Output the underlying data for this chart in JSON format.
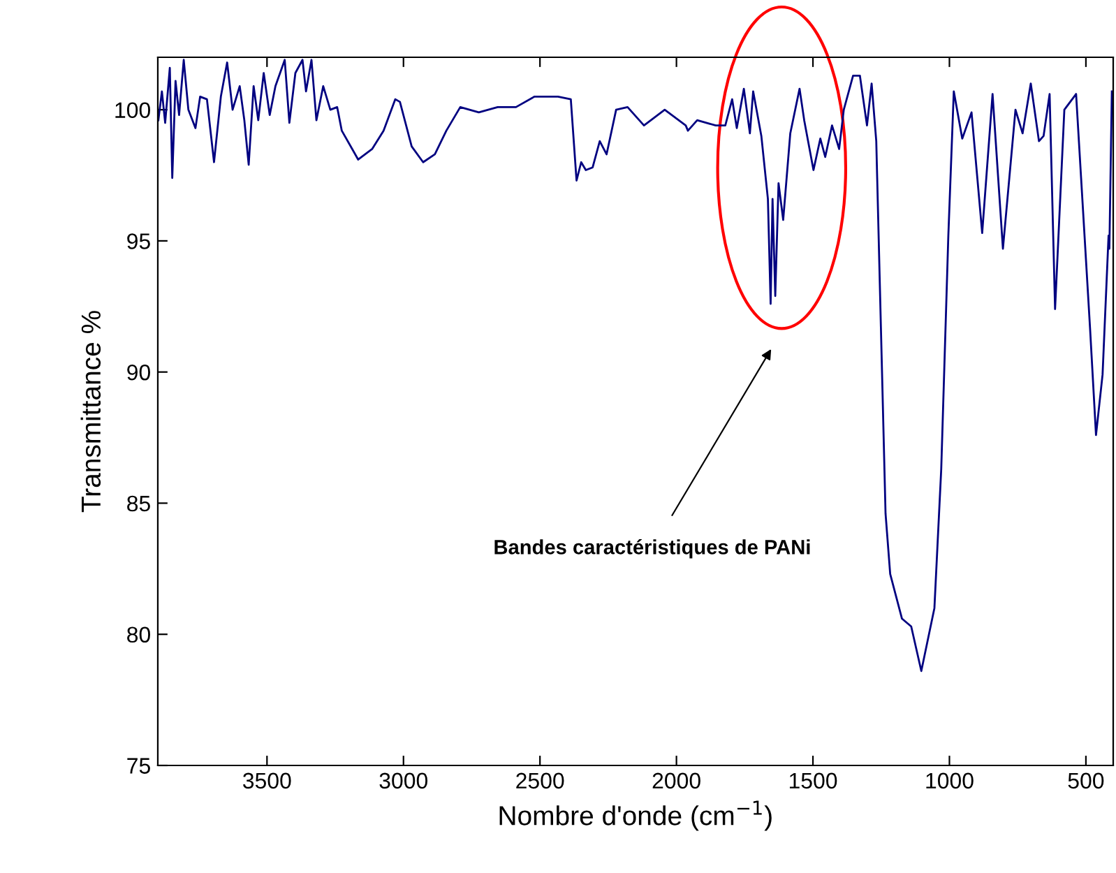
{
  "chart_data": {
    "type": "line",
    "xlabel": "Nombre d'onde (cm$^{−1}$)",
    "ylabel": "Transmittance %",
    "xlim": [
      3900,
      400
    ],
    "ylim": [
      75,
      102
    ],
    "xticks": [
      3500,
      3000,
      2500,
      2000,
      1500,
      1000,
      500
    ],
    "yticks": [
      75,
      80,
      85,
      90,
      95,
      100
    ],
    "grid": false,
    "legend": false,
    "annotations": [
      "Bandes caractéristiques de PANi"
    ],
    "series": [
      {
        "color": "#000080",
        "x": [
          3898,
          3885,
          3873,
          3856,
          3847,
          3835,
          3822,
          3805,
          3788,
          3762,
          3745,
          3720,
          3694,
          3669,
          3646,
          3626,
          3600,
          3583,
          3567,
          3549,
          3532,
          3512,
          3490,
          3469,
          3435,
          3418,
          3396,
          3370,
          3357,
          3337,
          3319,
          3294,
          3268,
          3243,
          3226,
          3166,
          3115,
          3073,
          3030,
          3013,
          2970,
          2928,
          2885,
          2843,
          2792,
          2724,
          2655,
          2588,
          2520,
          2434,
          2387,
          2366,
          2349,
          2332,
          2307,
          2281,
          2256,
          2221,
          2179,
          2119,
          2043,
          1966,
          1958,
          1924,
          1856,
          1821,
          1796,
          1779,
          1753,
          1731,
          1719,
          1689,
          1665,
          1655,
          1648,
          1638,
          1626,
          1609,
          1583,
          1549,
          1532,
          1498,
          1473,
          1455,
          1430,
          1404,
          1387,
          1353,
          1328,
          1302,
          1285,
          1268,
          1251,
          1234,
          1217,
          1174,
          1140,
          1103,
          1055,
          1030,
          1004,
          984,
          953,
          919,
          880,
          842,
          804,
          758,
          732,
          702,
          672,
          655,
          633,
          613,
          579,
          536,
          485,
          463,
          439,
          417,
          414,
          405
        ],
        "values": [
          99.6,
          100.7,
          99.5,
          101.6,
          97.4,
          101.1,
          99.8,
          101.9,
          100.0,
          99.3,
          100.5,
          100.4,
          98.0,
          100.5,
          101.8,
          100.0,
          100.9,
          99.6,
          97.9,
          100.9,
          99.6,
          101.4,
          99.8,
          100.9,
          101.9,
          99.5,
          101.4,
          101.9,
          100.7,
          101.9,
          99.6,
          100.9,
          100.0,
          100.1,
          99.2,
          98.1,
          98.5,
          99.2,
          100.4,
          100.3,
          98.6,
          98.0,
          98.3,
          99.2,
          100.1,
          99.9,
          100.1,
          100.1,
          100.5,
          100.5,
          100.4,
          97.3,
          98.0,
          97.7,
          97.8,
          98.8,
          98.3,
          100.0,
          100.1,
          99.4,
          100.0,
          99.4,
          99.2,
          99.6,
          99.4,
          99.4,
          100.4,
          99.3,
          100.8,
          99.1,
          100.7,
          99.0,
          96.6,
          92.6,
          96.6,
          92.9,
          97.2,
          95.8,
          99.1,
          100.8,
          99.6,
          97.7,
          98.9,
          98.2,
          99.4,
          98.5,
          100.0,
          101.3,
          101.3,
          99.4,
          101.0,
          98.8,
          91.7,
          84.6,
          82.3,
          80.6,
          80.3,
          78.6,
          81.0,
          86.3,
          95.2,
          100.7,
          98.9,
          99.9,
          95.3,
          100.6,
          94.7,
          100.0,
          99.1,
          101.0,
          98.8,
          99.0,
          100.6,
          92.4,
          100.0,
          100.6,
          91.7,
          87.6,
          89.9,
          95.2,
          94.7,
          100.7
        ]
      }
    ]
  }
}
